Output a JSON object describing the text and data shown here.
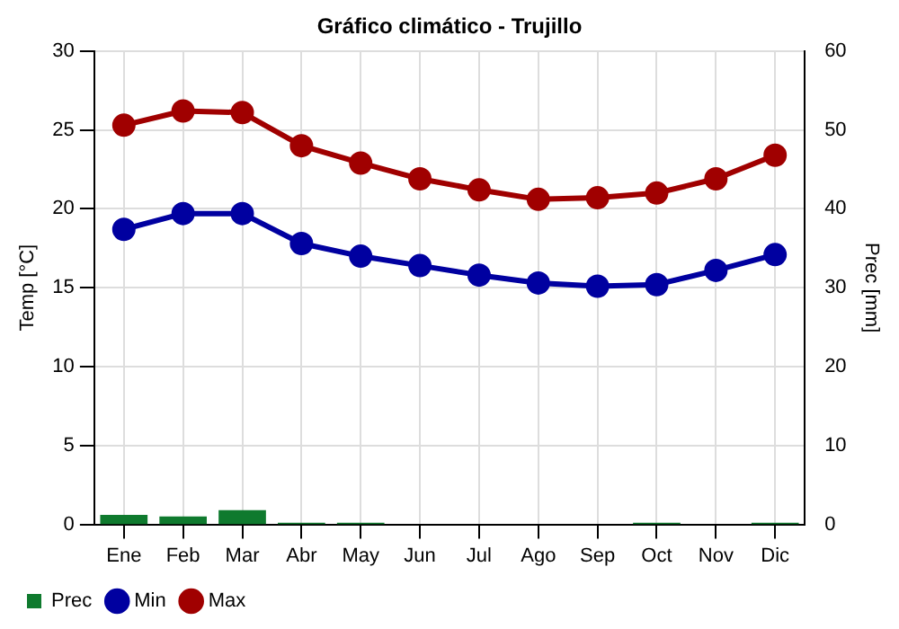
{
  "chart_data": {
    "type": "line",
    "title": "Gráfico climático - Trujillo",
    "ylabel": "Temp [°C]",
    "y2label": "Prec [mm]",
    "categories": [
      "Ene",
      "Feb",
      "Mar",
      "Abr",
      "May",
      "Jun",
      "Jul",
      "Ago",
      "Sep",
      "Oct",
      "Nov",
      "Dic"
    ],
    "series": [
      {
        "name": "Prec",
        "type": "bar",
        "axis": "y2",
        "color": "#0f7a2e",
        "values": [
          1.2,
          1.0,
          1.8,
          0.2,
          0.2,
          0,
          0,
          0,
          0,
          0.2,
          null,
          0.2
        ]
      },
      {
        "name": "Min",
        "color": "#0000a0",
        "values": [
          18.7,
          19.7,
          19.7,
          17.8,
          17.0,
          16.4,
          15.8,
          15.3,
          15.1,
          15.2,
          16.1,
          17.1
        ]
      },
      {
        "name": "Max",
        "color": "#a00000",
        "values": [
          25.3,
          26.2,
          26.1,
          24.0,
          22.9,
          21.9,
          21.2,
          20.6,
          20.7,
          21.0,
          21.9,
          23.4
        ]
      }
    ],
    "ylim": [
      0,
      30
    ],
    "yticks": [
      0,
      5,
      10,
      15,
      20,
      25,
      30
    ],
    "y2lim": [
      0,
      60
    ],
    "y2ticks": [
      0,
      10,
      20,
      30,
      40,
      50,
      60
    ],
    "grid": true,
    "legend": "bottom left",
    "marker": "circle",
    "line_style": "solid"
  }
}
